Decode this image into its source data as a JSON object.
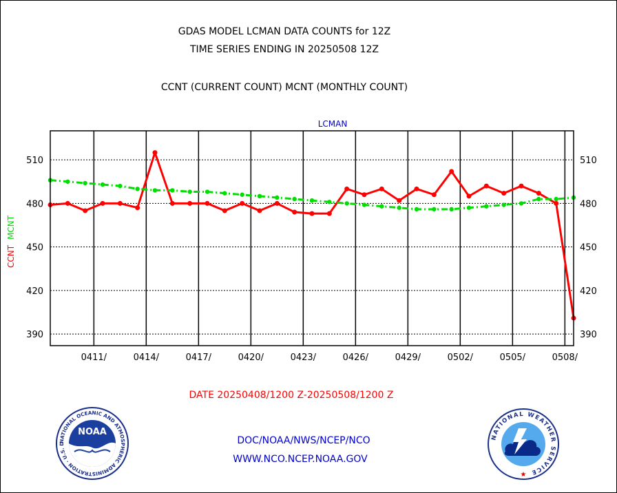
{
  "header": {
    "title_line1": "GDAS MODEL LCMAN DATA COUNTS for 12Z",
    "title_line2": "TIME SERIES ENDING IN 20250508 12Z",
    "subtitle": "CCNT (CURRENT COUNT) MCNT (MONTHLY COUNT)"
  },
  "footer": {
    "date_range": "DATE 20250408/1200 Z-20250508/1200 Z",
    "link1": "DOC/NOAA/NWS/NCEP/NCO",
    "link2": "WWW.NCO.NCEP.NOAA.GOV"
  },
  "logos": {
    "noaa_text": "NOAA",
    "noaa_ring_text": "NATIONAL OCEANIC AND ATMOSPHERIC ADMINISTRATION · U.S. DEPARTMENT OF COMMERCE",
    "nws_ring_text": "NATIONAL WEATHER SERVICE"
  },
  "colors": {
    "ccnt": "#ff0000",
    "mcnt": "#00dd00",
    "plot_title": "#0000cc",
    "footer_links": "#0000cc",
    "date_range": "#ff0000"
  },
  "chart_data": {
    "type": "line",
    "title": "LCMAN",
    "ylabel_series": [
      {
        "text": "CCNT",
        "color": "#ff0000"
      },
      {
        "text": "MCNT",
        "color": "#00dd00"
      }
    ],
    "ylim": [
      382,
      530
    ],
    "yticks": [
      390,
      420,
      450,
      480,
      510
    ],
    "xlim": [
      0,
      30
    ],
    "xtick_positions": [
      2.5,
      5.5,
      8.5,
      11.5,
      14.5,
      17.5,
      20.5,
      23.5,
      26.5,
      29.5
    ],
    "xtick_labels": [
      "0411/",
      "0414/",
      "0417/",
      "0420/",
      "0423/",
      "0426/",
      "0429/",
      "0502/",
      "0505/",
      "0508/"
    ],
    "grid": true,
    "x": [
      0,
      1,
      2,
      3,
      4,
      5,
      6,
      7,
      8,
      9,
      10,
      11,
      12,
      13,
      14,
      15,
      16,
      17,
      18,
      19,
      20,
      21,
      22,
      23,
      24,
      25,
      26,
      27,
      28,
      29,
      30
    ],
    "series": [
      {
        "name": "CCNT",
        "style": "solid",
        "values": [
          479,
          480,
          475,
          480,
          480,
          477,
          515,
          480,
          480,
          480,
          475,
          480,
          475,
          480,
          474,
          473,
          473,
          490,
          486,
          490,
          482,
          490,
          486,
          502,
          485,
          492,
          487,
          492,
          487,
          480,
          401
        ]
      },
      {
        "name": "MCNT",
        "style": "dashdot",
        "values": [
          496,
          495,
          494,
          493,
          492,
          490,
          489,
          489,
          488,
          488,
          487,
          486,
          485,
          484,
          483,
          482,
          481,
          480,
          479,
          478,
          477,
          476,
          476,
          476,
          477,
          478,
          479,
          480,
          483,
          483,
          484
        ]
      }
    ]
  }
}
